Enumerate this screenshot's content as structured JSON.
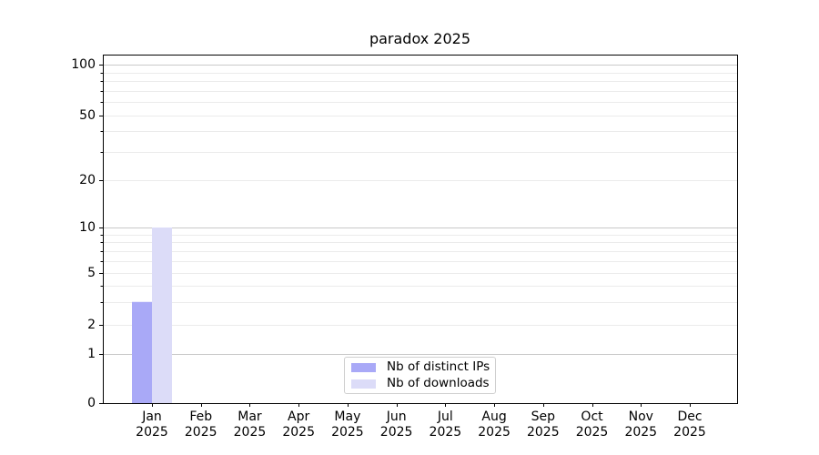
{
  "chart_data": {
    "type": "bar",
    "title": "paradox 2025",
    "categories": [
      "Jan",
      "Feb",
      "Mar",
      "Apr",
      "May",
      "Jun",
      "Jul",
      "Aug",
      "Sep",
      "Oct",
      "Nov",
      "Dec"
    ],
    "category_year": "2025",
    "series": [
      {
        "name": "Nb of distinct IPs",
        "color": "#a9a9f7",
        "values": [
          3,
          0,
          0,
          0,
          0,
          0,
          0,
          0,
          0,
          0,
          0,
          0
        ]
      },
      {
        "name": "Nb of downloads",
        "color": "#dcdcf8",
        "values": [
          10,
          0,
          0,
          0,
          0,
          0,
          0,
          0,
          0,
          0,
          0,
          0
        ]
      }
    ],
    "yscale": "symlog",
    "ylim": [
      0,
      100
    ],
    "yticks": [
      {
        "label": "0",
        "value": 0
      },
      {
        "label": "1",
        "value": 1
      },
      {
        "label": "2",
        "value": 2
      },
      {
        "label": "5",
        "value": 5
      },
      {
        "label": "10",
        "value": 10
      },
      {
        "label": "20",
        "value": 20
      },
      {
        "label": "50",
        "value": 50
      },
      {
        "label": "100",
        "value": 100
      }
    ],
    "grid": "both",
    "legend_position": "bottom-center"
  },
  "colors": {
    "background": "#ffffff",
    "axis": "#000000",
    "grid_major": "#c9c9c9",
    "grid_minor": "#ebebeb",
    "text": "#000000"
  }
}
